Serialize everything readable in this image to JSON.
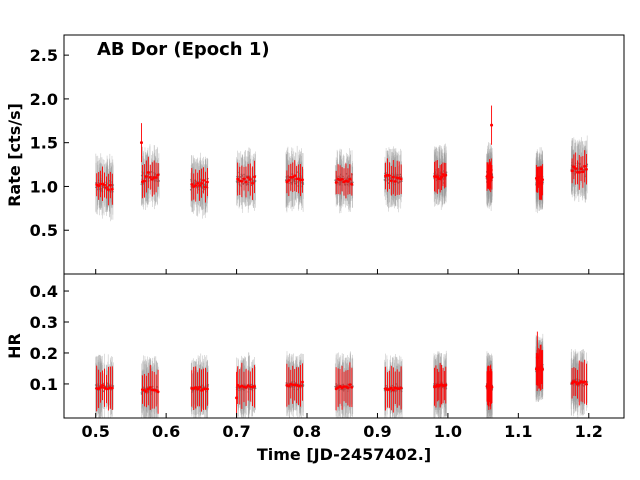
{
  "chart_data": [
    {
      "panel": "top",
      "type": "scatter",
      "title": "AB Dor (Epoch 1)",
      "ylabel": "Rate [cts/s]",
      "xlim": [
        0.455,
        1.25
      ],
      "ylim": [
        0.0,
        2.73
      ],
      "yticks": [
        "0.5",
        "1.0",
        "1.5",
        "2.0",
        "2.5"
      ],
      "ytick_values": [
        0.5,
        1.0,
        1.5,
        2.0,
        2.5
      ],
      "colors": {
        "fine": "#9a9a9a",
        "binned": "#ff0000"
      },
      "segments": [
        {
          "x0": 0.5,
          "x1": 0.525,
          "mean": 1.0
        },
        {
          "x0": 0.565,
          "x1": 0.59,
          "mean": 1.1
        },
        {
          "x0": 0.635,
          "x1": 0.66,
          "mean": 1.02
        },
        {
          "x0": 0.7,
          "x1": 0.727,
          "mean": 1.07
        },
        {
          "x0": 0.77,
          "x1": 0.795,
          "mean": 1.08
        },
        {
          "x0": 0.84,
          "x1": 0.865,
          "mean": 1.05
        },
        {
          "x0": 0.91,
          "x1": 0.935,
          "mean": 1.1
        },
        {
          "x0": 0.98,
          "x1": 0.998,
          "mean": 1.12
        },
        {
          "x0": 1.055,
          "x1": 1.063,
          "mean": 1.12
        },
        {
          "x0": 1.125,
          "x1": 1.135,
          "mean": 1.07
        },
        {
          "x0": 1.175,
          "x1": 1.198,
          "mean": 1.2
        }
      ],
      "highlights": [
        {
          "x": 0.565,
          "y": 1.5
        },
        {
          "x": 1.062,
          "y": 1.7
        }
      ]
    },
    {
      "panel": "bottom",
      "type": "scatter",
      "xlabel": "Time [JD-2457402.]",
      "ylabel": "HR",
      "xlim": [
        0.455,
        1.25
      ],
      "ylim": [
        -0.01,
        0.455
      ],
      "xticks": [
        "0.5",
        "0.6",
        "0.7",
        "0.8",
        "0.9",
        "1.0",
        "1.1",
        "1.2"
      ],
      "xtick_values": [
        0.5,
        0.6,
        0.7,
        0.8,
        0.9,
        1.0,
        1.1,
        1.2
      ],
      "yticks": [
        "0.1",
        "0.2",
        "0.3",
        "0.4"
      ],
      "ytick_values": [
        0.1,
        0.2,
        0.3,
        0.4
      ],
      "colors": {
        "fine": "#9a9a9a",
        "binned": "#ff0000"
      },
      "segments": [
        {
          "x0": 0.5,
          "x1": 0.525,
          "mean": 0.09
        },
        {
          "x0": 0.565,
          "x1": 0.59,
          "mean": 0.08
        },
        {
          "x0": 0.635,
          "x1": 0.66,
          "mean": 0.085
        },
        {
          "x0": 0.7,
          "x1": 0.727,
          "mean": 0.09
        },
        {
          "x0": 0.77,
          "x1": 0.795,
          "mean": 0.095
        },
        {
          "x0": 0.84,
          "x1": 0.865,
          "mean": 0.09
        },
        {
          "x0": 0.91,
          "x1": 0.935,
          "mean": 0.085
        },
        {
          "x0": 0.98,
          "x1": 0.998,
          "mean": 0.095
        },
        {
          "x0": 1.055,
          "x1": 1.063,
          "mean": 0.09
        },
        {
          "x0": 1.125,
          "x1": 1.135,
          "mean": 0.15
        },
        {
          "x0": 1.175,
          "x1": 1.198,
          "mean": 0.105
        }
      ],
      "highlights": [
        {
          "x": 0.7,
          "y": 0.055
        },
        {
          "x": 1.127,
          "y": 0.185
        }
      ]
    }
  ]
}
